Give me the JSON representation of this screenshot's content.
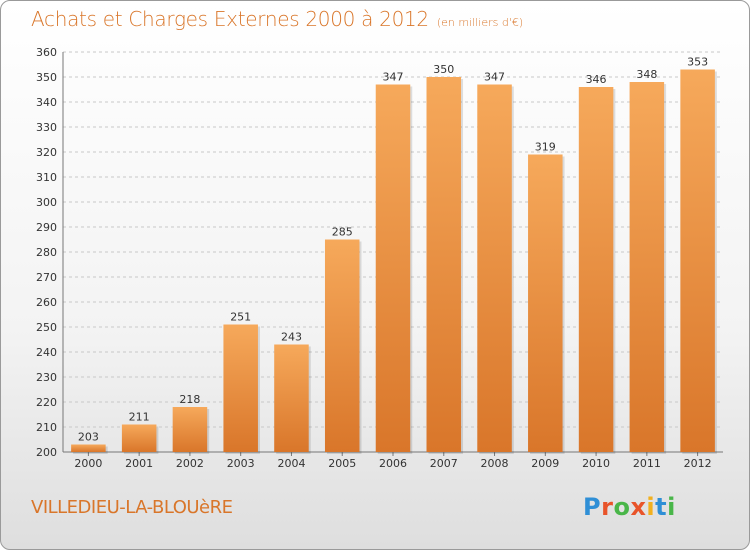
{
  "header": {
    "title": "Achats et Charges Externes 2000 à 2012",
    "subtitle": "(en milliers d'€)"
  },
  "footer": {
    "location": "VILLEDIEU-LA-BLOUèRE",
    "brand": [
      "P",
      "r",
      "o",
      "x",
      "i",
      "t",
      "i"
    ],
    "brand_colors": [
      "#2f8fd6",
      "#e8542a",
      "#49b649",
      "#e8542a",
      "#f2b01e",
      "#2f8fd6",
      "#49b649"
    ]
  },
  "colors": {
    "bar_light": "#f6a95b",
    "bar_dark": "#d9762a",
    "accent": "#d9762a",
    "grid": "#c8c8c8"
  },
  "chart_data": {
    "type": "bar",
    "categories": [
      "2000",
      "2001",
      "2002",
      "2003",
      "2004",
      "2005",
      "2006",
      "2007",
      "2008",
      "2009",
      "2010",
      "2011",
      "2012"
    ],
    "values": [
      203,
      211,
      218,
      251,
      243,
      285,
      347,
      350,
      347,
      319,
      346,
      348,
      353
    ],
    "ylim": [
      200,
      360
    ],
    "yticks": [
      200,
      210,
      220,
      230,
      240,
      250,
      260,
      270,
      280,
      290,
      300,
      310,
      320,
      330,
      340,
      350,
      360
    ],
    "grid": true,
    "data_labels": true
  }
}
